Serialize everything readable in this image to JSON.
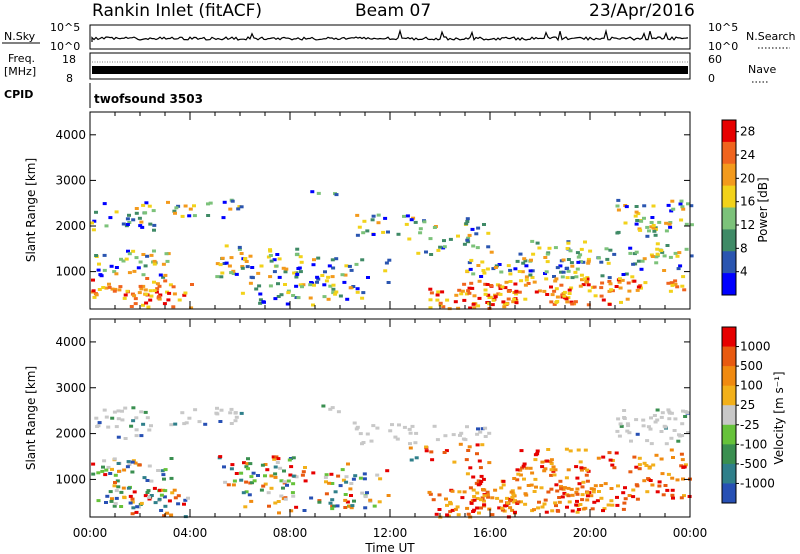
{
  "header": {
    "station": "Rankin Inlet (fitACF)",
    "beam": "Beam 07",
    "date": "23/Apr/2016"
  },
  "status_panels": {
    "nsky_label": "N.Sky",
    "nsearch_label": "N.Search",
    "nsky_ticks": [
      "10^5",
      "10^0"
    ],
    "nsearch_ticks": [
      "10^5",
      "10^0"
    ],
    "freq_label_1": "Freq.",
    "freq_label_2": "[MHz]",
    "freq_ticks": [
      "18",
      "8"
    ],
    "nave_label": "Nave",
    "nave_ticks": [
      "60",
      "0"
    ],
    "cpid_label": "CPID",
    "cpid_value": "twofsound 3503"
  },
  "chart_data": [
    {
      "type": "heatmap",
      "ylabel": "Slant Range [km]",
      "xlabel": "",
      "x_ticks": [
        "00:00",
        "04:00",
        "08:00",
        "12:00",
        "16:00",
        "20:00",
        "00:00"
      ],
      "y_ticks": [
        1000,
        2000,
        3000,
        4000
      ],
      "ylim": [
        180,
        4500
      ],
      "xlim_hours": [
        0,
        24
      ],
      "colorbar_label": "Power [dB]",
      "colorbar_ticks": [
        4,
        8,
        12,
        16,
        20,
        24,
        28
      ],
      "colorbar_range": [
        0,
        30
      ],
      "colors": [
        "#0000ff",
        "#2a55b0",
        "#3f8a66",
        "#7cc27a",
        "#f2d21a",
        "#f39a1c",
        "#f0641e",
        "#e60000"
      ]
    },
    {
      "type": "heatmap",
      "ylabel": "Slant Range [km]",
      "xlabel": "Time UT",
      "x_ticks": [
        "00:00",
        "04:00",
        "08:00",
        "12:00",
        "16:00",
        "20:00",
        "00:00"
      ],
      "y_ticks": [
        1000,
        2000,
        3000,
        4000
      ],
      "ylim": [
        180,
        4500
      ],
      "xlim_hours": [
        0,
        24
      ],
      "colorbar_label": "Velocity [m s⁻¹]",
      "colorbar_ticks": [
        "1000",
        "500",
        "100",
        "25",
        "-25",
        "-100",
        "-500",
        "-1000"
      ],
      "colors": [
        "#2750b4",
        "#2f7f8a",
        "#3a8f50",
        "#66c23a",
        "#c8c8c8",
        "#f2b01a",
        "#f08a10",
        "#e85a10",
        "#e60000"
      ]
    }
  ]
}
